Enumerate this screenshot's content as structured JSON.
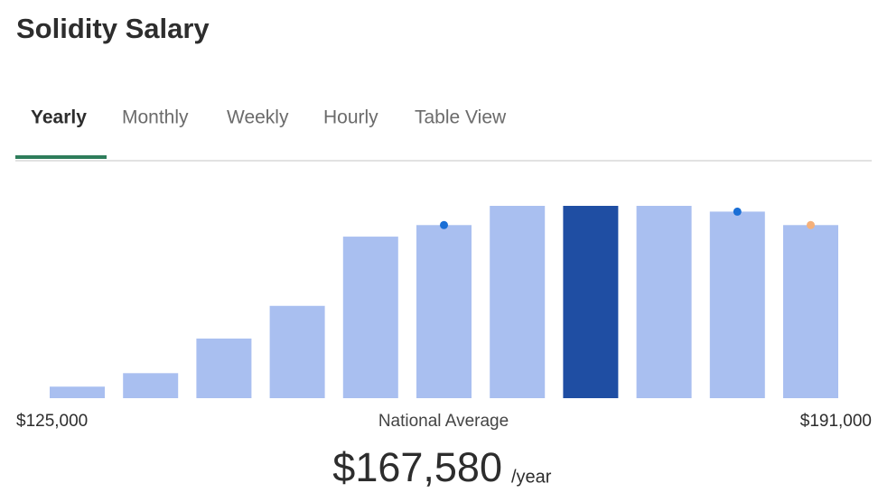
{
  "header": {
    "title": "Solidity Salary"
  },
  "tabs": [
    "Yearly",
    "Monthly",
    "Weekly",
    "Hourly",
    "Table View"
  ],
  "active_tab": 0,
  "chart_data": {
    "type": "bar",
    "values": [
      6,
      13,
      31,
      48,
      84,
      90,
      100,
      100,
      100,
      97,
      90
    ],
    "colors": [
      "#a9bff0",
      "#a9bff0",
      "#a9bff0",
      "#a9bff0",
      "#a9bff0",
      "#a9bff0",
      "#a9bff0",
      "#1f4ea3",
      "#a9bff0",
      "#a9bff0",
      "#a9bff0"
    ],
    "dot_colors": [
      null,
      null,
      null,
      null,
      null,
      "#1a6fd6",
      null,
      null,
      null,
      "#1a6fd6",
      "#f5b07a"
    ],
    "ylim": [
      0,
      100
    ],
    "x_start_label": "$125,000",
    "x_center_label": "National Average",
    "x_end_label": "$191,000"
  },
  "summary": {
    "amount": "$167,580",
    "unit": "/year"
  }
}
